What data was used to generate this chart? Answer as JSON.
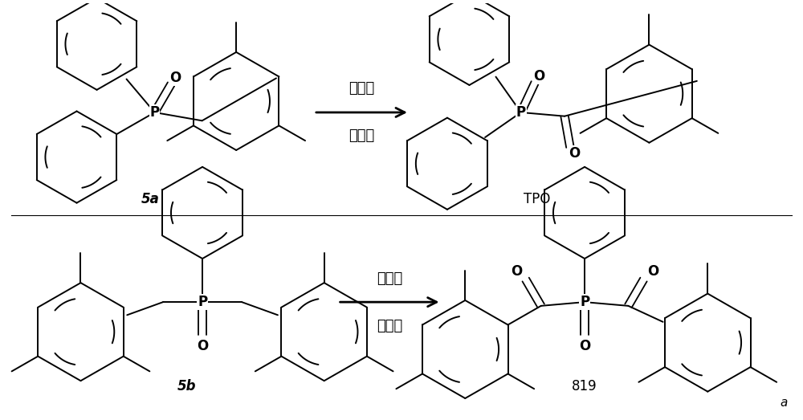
{
  "background_color": "#ffffff",
  "fig_width": 10.0,
  "fig_height": 5.23,
  "arrow_text_top": "氧化剂",
  "arrow_text_bot": "催化剂",
  "label_5a": "5a",
  "label_5b": "5b",
  "label_tpo": "TPO",
  "label_819": "819",
  "label_a": "a"
}
